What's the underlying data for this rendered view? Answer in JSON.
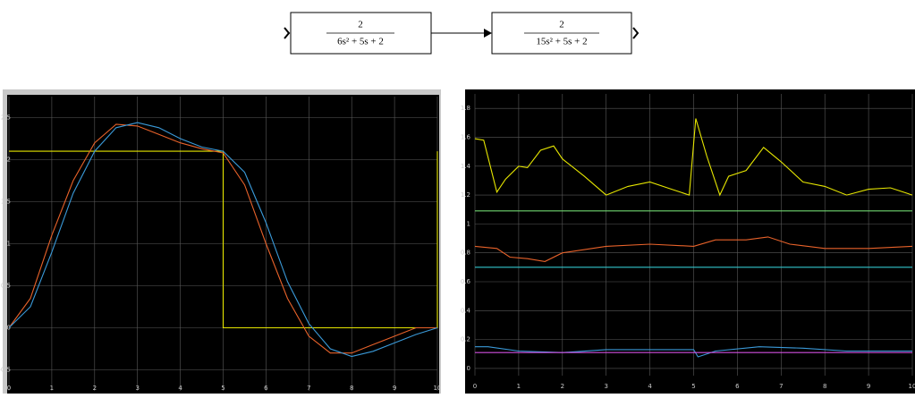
{
  "diagram": {
    "blocks": [
      {
        "numerator": "2",
        "denominator": "6s² + 5s + 2"
      },
      {
        "numerator": "2",
        "denominator": "15s² + 5s + 2"
      }
    ]
  },
  "chart_data": [
    {
      "type": "line",
      "xlim": [
        0,
        10
      ],
      "ylim": [
        -0.75,
        2.75
      ],
      "xticks": [
        0,
        1,
        2,
        3,
        4,
        5,
        6,
        7,
        8,
        9,
        10
      ],
      "yticks": [
        -0.5,
        0,
        0.5,
        1,
        1.5,
        2,
        2.5
      ],
      "grid": true,
      "series": [
        {
          "color": "#e6e600",
          "x": [
            0,
            5,
            5,
            10,
            10
          ],
          "values": [
            2.1,
            2.1,
            0,
            0,
            2.1
          ]
        },
        {
          "color": "#e8622a",
          "x": [
            0,
            0.5,
            1,
            1.5,
            2,
            2.5,
            3,
            3.5,
            4,
            4.5,
            5,
            5.5,
            6,
            6.5,
            7,
            7.5,
            8,
            8.5,
            9,
            9.5,
            10
          ],
          "values": [
            0,
            0.35,
            1.1,
            1.75,
            2.2,
            2.42,
            2.4,
            2.3,
            2.2,
            2.13,
            2.08,
            1.7,
            1.0,
            0.35,
            -0.1,
            -0.3,
            -0.3,
            -0.2,
            -0.1,
            0,
            0
          ]
        },
        {
          "color": "#3a9ad9",
          "x": [
            0,
            0.5,
            1,
            1.5,
            2,
            2.5,
            3,
            3.5,
            4,
            4.5,
            5,
            5.5,
            6,
            6.5,
            7,
            7.5,
            8,
            8.5,
            9,
            9.5,
            10
          ],
          "values": [
            0,
            0.25,
            0.9,
            1.6,
            2.1,
            2.38,
            2.44,
            2.38,
            2.25,
            2.15,
            2.1,
            1.85,
            1.25,
            0.55,
            0.05,
            -0.25,
            -0.34,
            -0.28,
            -0.18,
            -0.08,
            0
          ]
        }
      ]
    },
    {
      "type": "line",
      "xlim": [
        0,
        10
      ],
      "ylim": [
        -0.05,
        1.9
      ],
      "xticks": [
        0,
        1,
        2,
        3,
        4,
        5,
        6,
        7,
        8,
        9,
        10
      ],
      "yticks": [
        0,
        0.2,
        0.4,
        0.6,
        0.8,
        1,
        1.2,
        1.4,
        1.6,
        1.8
      ],
      "grid": true,
      "series": [
        {
          "color": "#e6e600",
          "x": [
            0,
            0.2,
            0.5,
            0.7,
            1,
            1.2,
            1.5,
            1.8,
            2,
            2.5,
            3,
            3.5,
            4,
            4.5,
            4.9,
            5.05,
            5.3,
            5.6,
            5.8,
            6.2,
            6.6,
            7,
            7.5,
            8,
            8.5,
            9,
            9.5,
            10
          ],
          "values": [
            1.59,
            1.58,
            1.22,
            1.31,
            1.4,
            1.39,
            1.51,
            1.54,
            1.45,
            1.33,
            1.2,
            1.26,
            1.29,
            1.24,
            1.2,
            1.73,
            1.47,
            1.2,
            1.33,
            1.37,
            1.53,
            1.43,
            1.29,
            1.26,
            1.2,
            1.24,
            1.25,
            1.2
          ]
        },
        {
          "color": "#6fd66f",
          "x": [
            0,
            10
          ],
          "values": [
            1.09,
            1.09
          ]
        },
        {
          "color": "#e8622a",
          "x": [
            0,
            0.5,
            0.8,
            1.2,
            1.6,
            2,
            3,
            4,
            5,
            5.5,
            6.2,
            6.7,
            7.2,
            8,
            9,
            10
          ],
          "values": [
            0.845,
            0.83,
            0.77,
            0.76,
            0.74,
            0.8,
            0.845,
            0.86,
            0.845,
            0.89,
            0.89,
            0.91,
            0.86,
            0.83,
            0.83,
            0.845
          ]
        },
        {
          "color": "#33c6cc",
          "x": [
            0,
            10
          ],
          "values": [
            0.7,
            0.7
          ]
        },
        {
          "color": "#3a9ad9",
          "x": [
            0,
            0.3,
            1,
            2,
            3,
            4,
            5,
            5.1,
            5.5,
            6.5,
            7.5,
            8.5,
            10
          ],
          "values": [
            0.15,
            0.15,
            0.12,
            0.11,
            0.13,
            0.13,
            0.13,
            0.08,
            0.12,
            0.15,
            0.14,
            0.12,
            0.12
          ]
        },
        {
          "color": "#d050e0",
          "x": [
            0,
            10
          ],
          "values": [
            0.11,
            0.11
          ]
        }
      ]
    }
  ]
}
